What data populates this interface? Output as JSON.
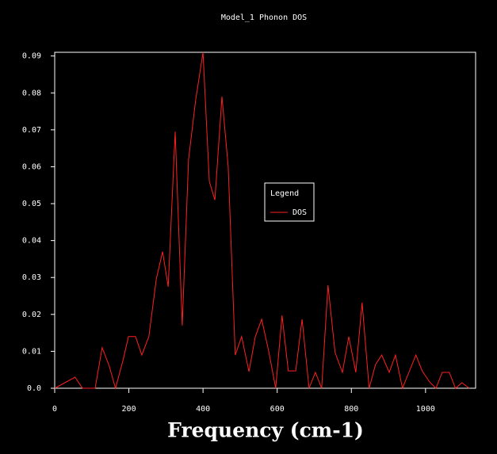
{
  "chart_data": {
    "type": "line",
    "title": "Model_1 Phonon DOS",
    "x_label": "Frequency (cm-1)",
    "x": [
      0,
      55,
      75,
      109,
      128,
      147,
      164,
      184,
      199,
      218,
      235,
      254,
      274,
      291,
      306,
      325,
      344,
      361,
      380,
      400,
      417,
      432,
      451,
      468,
      487,
      504,
      524,
      541,
      558,
      577,
      596,
      613,
      630,
      650,
      667,
      686,
      703,
      720,
      737,
      756,
      776,
      793,
      812,
      829,
      848,
      865,
      882,
      902,
      919,
      938,
      955,
      974,
      991,
      1011,
      1028,
      1045,
      1064,
      1081,
      1098,
      1118
    ],
    "series": [
      {
        "name": "DOS",
        "color": "#ff2020",
        "values": [
          0,
          0.003,
          0,
          0,
          0.011,
          0.006,
          0,
          0.0075,
          0.014,
          0.014,
          0.009,
          0.014,
          0.0296,
          0.037,
          0.0275,
          0.0695,
          0.017,
          0.062,
          0.078,
          0.091,
          0.056,
          0.051,
          0.079,
          0.06,
          0.009,
          0.014,
          0.0045,
          0.014,
          0.0187,
          0.0101,
          0,
          0.0197,
          0.0047,
          0.0047,
          0.0187,
          0,
          0.0043,
          0,
          0.0279,
          0.0097,
          0.0043,
          0.014,
          0.0043,
          0.0232,
          0,
          0.0064,
          0.009,
          0.0043,
          0.009,
          0,
          0.0043,
          0.009,
          0.0047,
          0.0017,
          0,
          0.0043,
          0.0043,
          0,
          0.0015,
          0
        ]
      }
    ],
    "xlim": [
      0,
      1135
    ],
    "xticks": [
      0,
      200,
      400,
      600,
      800,
      1000
    ],
    "ylim": [
      0,
      0.091
    ],
    "yticks": [
      {
        "value": 0,
        "label": "0.0"
      },
      0.01,
      0.02,
      0.03,
      0.04,
      0.05,
      0.06,
      0.07,
      0.08,
      0.09
    ],
    "legend_title": "Legend",
    "legend": "center-right",
    "grid": false
  }
}
